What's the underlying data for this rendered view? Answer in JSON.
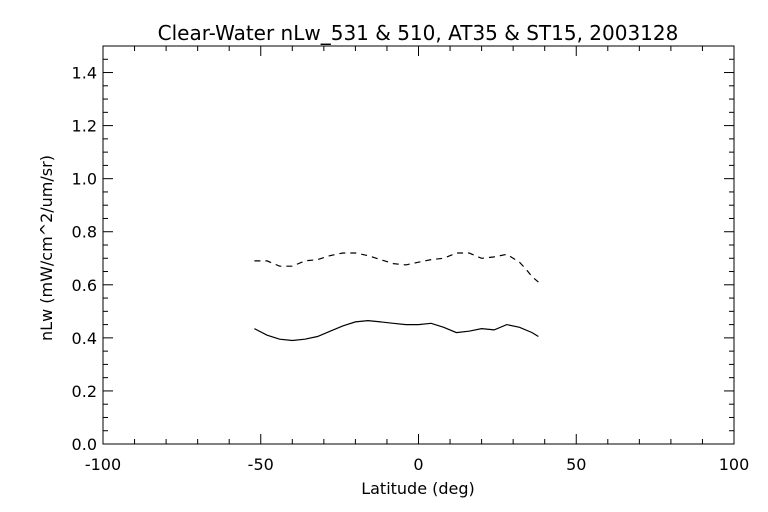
{
  "chart_data": {
    "type": "line",
    "title": "Clear-Water nLw_531 & 510, AT35 & ST15, 2003128",
    "xlabel": "Latitude (deg)",
    "ylabel": "nLw (mW/cm^2/um/sr)",
    "xlim": [
      -100,
      100
    ],
    "ylim": [
      0.0,
      1.5
    ],
    "xticks": [
      -100,
      -50,
      0,
      50,
      100
    ],
    "xtick_labels": [
      "-100",
      "-50",
      "0",
      "50",
      "100"
    ],
    "yticks": [
      0.0,
      0.2,
      0.4,
      0.6,
      0.8,
      1.0,
      1.2,
      1.4
    ],
    "ytick_labels": [
      "0.0",
      "0.2",
      "0.4",
      "0.6",
      "0.8",
      "1.0",
      "1.2",
      "1.4"
    ],
    "x_minor_step": 10,
    "y_minor_step": 0.05,
    "grid": false,
    "series": [
      {
        "style": "solid",
        "color": "#000000",
        "x": [
          -52,
          -48,
          -44,
          -40,
          -36,
          -32,
          -28,
          -24,
          -20,
          -16,
          -12,
          -8,
          -4,
          0,
          4,
          8,
          12,
          16,
          20,
          24,
          28,
          32,
          36,
          38
        ],
        "y": [
          0.435,
          0.41,
          0.395,
          0.39,
          0.395,
          0.405,
          0.425,
          0.445,
          0.46,
          0.465,
          0.46,
          0.455,
          0.45,
          0.45,
          0.455,
          0.44,
          0.42,
          0.425,
          0.435,
          0.43,
          0.45,
          0.44,
          0.42,
          0.405
        ]
      },
      {
        "style": "dashed",
        "color": "#000000",
        "x": [
          -52,
          -48,
          -44,
          -40,
          -36,
          -32,
          -28,
          -24,
          -20,
          -16,
          -12,
          -8,
          -4,
          0,
          4,
          8,
          12,
          16,
          20,
          24,
          28,
          32,
          34,
          36,
          38
        ],
        "y": [
          0.69,
          0.69,
          0.67,
          0.67,
          0.69,
          0.695,
          0.71,
          0.72,
          0.72,
          0.71,
          0.695,
          0.68,
          0.675,
          0.685,
          0.695,
          0.7,
          0.72,
          0.72,
          0.7,
          0.705,
          0.715,
          0.685,
          0.66,
          0.63,
          0.61
        ]
      }
    ]
  }
}
